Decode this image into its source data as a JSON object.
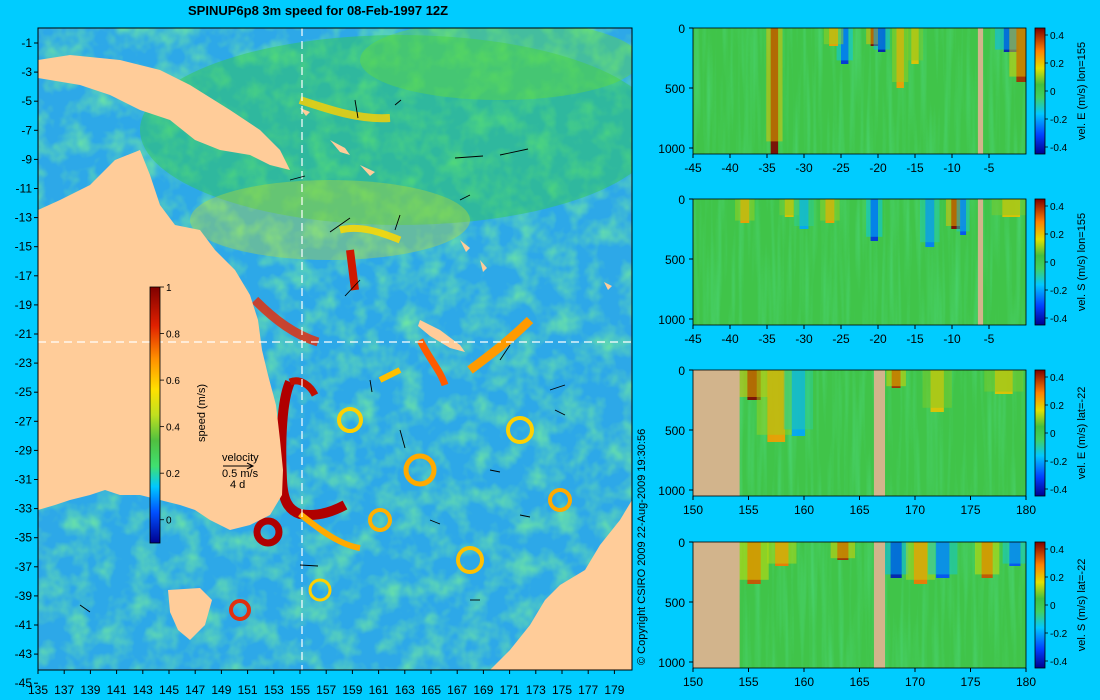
{
  "title": "SPINUP6p8 3m speed for 08-Feb-1997 12Z",
  "copyright": "© Copyright CSIRO 2009   22-Aug-2009 19:30:56",
  "colors": {
    "background": "#00ccff",
    "land": "#ffcc99",
    "section_land": "#d2b48c",
    "crosshair": "#ffffff"
  },
  "map": {
    "lat_ticks": [
      "-1",
      "-3",
      "-5",
      "-7",
      "-9",
      "-11",
      "-13",
      "-15",
      "-17",
      "-19",
      "-21",
      "-23",
      "-25",
      "-27",
      "-29",
      "-31",
      "-33",
      "-35",
      "-37",
      "-39",
      "-41",
      "-43",
      "-45"
    ],
    "lon_ticks": [
      "135",
      "137",
      "139",
      "141",
      "143",
      "145",
      "147",
      "149",
      "151",
      "153",
      "155",
      "157",
      "159",
      "161",
      "163",
      "165",
      "167",
      "169",
      "171",
      "173",
      "175",
      "177",
      "179"
    ],
    "crosshair": {
      "lon": 155,
      "lat": -22
    },
    "colorbar": {
      "label": "speed (m/s)",
      "ticks": [
        "1",
        "0.8",
        "0.6",
        "0.4",
        "0.2",
        "0"
      ],
      "range": [
        -0.1,
        1.0
      ]
    },
    "velocity_key": {
      "title": "velocity",
      "speed": "0.5 m/s",
      "time": "4 d"
    }
  },
  "chart_data": [
    {
      "type": "heatmap",
      "title": "",
      "xlabel": "",
      "ylabel": "",
      "colorbar_label": "vel. E (m/s) lon=155",
      "x_ticks": [
        "-45",
        "-40",
        "-35",
        "-30",
        "-25",
        "-20",
        "-15",
        "-10",
        "-5"
      ],
      "y_ticks": [
        "0",
        "500",
        "1000"
      ],
      "cb_ticks": [
        "0.4",
        "0.2",
        "0",
        "-0.2",
        "-0.4"
      ],
      "xlim": [
        -45,
        0
      ],
      "ylim": [
        0,
        1050
      ],
      "clim": [
        -0.45,
        0.45
      ],
      "features": [
        {
          "x": -34,
          "half_width": 0.5,
          "value": 0.45,
          "depth_to": 1050
        },
        {
          "x": -24.5,
          "half_width": 0.5,
          "value": -0.35,
          "depth_to": 300
        },
        {
          "x": -20.5,
          "half_width": 0.5,
          "value": 0.45,
          "depth_to": 150
        },
        {
          "x": -19.5,
          "half_width": 0.5,
          "value": -0.4,
          "depth_to": 200
        },
        {
          "x": -26,
          "half_width": 0.6,
          "value": 0.25,
          "depth_to": 150
        },
        {
          "x": -17,
          "half_width": 0.5,
          "value": 0.25,
          "depth_to": 500
        },
        {
          "x": -15,
          "half_width": 0.5,
          "value": 0.2,
          "depth_to": 300
        },
        {
          "x": -2,
          "half_width": 1.0,
          "value": -0.4,
          "depth_to": 200
        },
        {
          "x": -0.5,
          "half_width": 0.8,
          "value": 0.4,
          "depth_to": 450
        }
      ],
      "land": [
        [
          -6.5,
          -5.8
        ]
      ]
    },
    {
      "type": "heatmap",
      "title": "",
      "xlabel": "",
      "ylabel": "",
      "colorbar_label": "vel. S (m/s) lon=155",
      "x_ticks": [
        "-45",
        "-40",
        "-35",
        "-30",
        "-25",
        "-20",
        "-15",
        "-10",
        "-5"
      ],
      "y_ticks": [
        "0",
        "500",
        "1000"
      ],
      "cb_ticks": [
        "0.4",
        "0.2",
        "0",
        "-0.2",
        "-0.4"
      ],
      "xlim": [
        -45,
        0
      ],
      "ylim": [
        0,
        1050
      ],
      "clim": [
        -0.45,
        0.45
      ],
      "features": [
        {
          "x": -38,
          "half_width": 0.6,
          "value": 0.25,
          "depth_to": 200
        },
        {
          "x": -32,
          "half_width": 0.6,
          "value": 0.2,
          "depth_to": 150
        },
        {
          "x": -30,
          "half_width": 0.6,
          "value": -0.2,
          "depth_to": 250
        },
        {
          "x": -26.5,
          "half_width": 0.6,
          "value": 0.25,
          "depth_to": 200
        },
        {
          "x": -20.5,
          "half_width": 0.5,
          "value": -0.35,
          "depth_to": 350
        },
        {
          "x": -13,
          "half_width": 0.6,
          "value": -0.25,
          "depth_to": 400
        },
        {
          "x": -9.5,
          "half_width": 0.6,
          "value": 0.45,
          "depth_to": 250
        },
        {
          "x": -8.5,
          "half_width": 0.4,
          "value": -0.3,
          "depth_to": 300
        },
        {
          "x": -2,
          "half_width": 1.2,
          "value": 0.2,
          "depth_to": 150
        }
      ],
      "land": [
        [
          -6.5,
          -5.8
        ]
      ]
    },
    {
      "type": "heatmap",
      "title": "",
      "xlabel": "",
      "ylabel": "",
      "colorbar_label": "vel. E (m/s) lat=-22",
      "x_ticks": [
        "150",
        "155",
        "160",
        "165",
        "170",
        "175",
        "180"
      ],
      "y_ticks": [
        "0",
        "500",
        "1000"
      ],
      "cb_ticks": [
        "0.4",
        "0.2",
        "0",
        "-0.2",
        "-0.4"
      ],
      "xlim": [
        150,
        180
      ],
      "ylim": [
        0,
        1050
      ],
      "clim": [
        -0.45,
        0.45
      ],
      "features": [
        {
          "x": 155.5,
          "half_width": 0.6,
          "value": 0.45,
          "depth_to": 250
        },
        {
          "x": 157.5,
          "half_width": 0.8,
          "value": 0.25,
          "depth_to": 600
        },
        {
          "x": 159.5,
          "half_width": 0.6,
          "value": -0.2,
          "depth_to": 550
        },
        {
          "x": 168.3,
          "half_width": 0.4,
          "value": 0.4,
          "depth_to": 150
        },
        {
          "x": 172,
          "half_width": 0.6,
          "value": 0.2,
          "depth_to": 350
        },
        {
          "x": 178,
          "half_width": 0.8,
          "value": 0.2,
          "depth_to": 200
        }
      ],
      "land": [
        [
          150,
          154.2
        ],
        [
          166.3,
          167.3
        ]
      ]
    },
    {
      "type": "heatmap",
      "title": "",
      "xlabel": "",
      "ylabel": "",
      "colorbar_label": "vel. S (m/s) lat=-22",
      "x_ticks": [
        "150",
        "155",
        "160",
        "165",
        "170",
        "175",
        "180"
      ],
      "y_ticks": [
        "0",
        "500",
        "1000"
      ],
      "cb_ticks": [
        "0.4",
        "0.2",
        "0",
        "-0.2",
        "-0.4"
      ],
      "xlim": [
        150,
        180
      ],
      "ylim": [
        0,
        1050
      ],
      "clim": [
        -0.45,
        0.45
      ],
      "features": [
        {
          "x": 155.5,
          "half_width": 0.6,
          "value": 0.35,
          "depth_to": 350
        },
        {
          "x": 158,
          "half_width": 0.6,
          "value": 0.3,
          "depth_to": 200
        },
        {
          "x": 163.5,
          "half_width": 0.5,
          "value": 0.4,
          "depth_to": 150
        },
        {
          "x": 168.3,
          "half_width": 0.5,
          "value": -0.4,
          "depth_to": 300
        },
        {
          "x": 170.5,
          "half_width": 0.6,
          "value": 0.3,
          "depth_to": 350
        },
        {
          "x": 172.5,
          "half_width": 0.6,
          "value": -0.3,
          "depth_to": 300
        },
        {
          "x": 176.5,
          "half_width": 0.5,
          "value": 0.35,
          "depth_to": 300
        },
        {
          "x": 179,
          "half_width": 0.5,
          "value": -0.3,
          "depth_to": 200
        }
      ],
      "land": [
        [
          150,
          154.2
        ],
        [
          166.3,
          167.3
        ]
      ]
    }
  ]
}
